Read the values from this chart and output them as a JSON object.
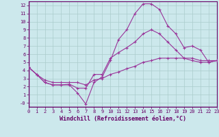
{
  "xlabel": "Windchill (Refroidissement éolien,°C)",
  "background_color": "#cce8ec",
  "grid_color": "#aacccc",
  "line_color": "#993399",
  "xlim": [
    0,
    23
  ],
  "ylim": [
    -0.5,
    12.5
  ],
  "xticks": [
    0,
    1,
    2,
    3,
    4,
    5,
    6,
    7,
    8,
    9,
    10,
    11,
    12,
    13,
    14,
    15,
    16,
    17,
    18,
    19,
    20,
    21,
    22,
    23
  ],
  "yticks": [
    0,
    1,
    2,
    3,
    4,
    5,
    6,
    7,
    8,
    9,
    10,
    11,
    12
  ],
  "ytick_labels": [
    "-0",
    "1",
    "2",
    "3",
    "4",
    "5",
    "6",
    "7",
    "8",
    "9",
    "10",
    "11",
    "12"
  ],
  "curve1_x": [
    0,
    1,
    2,
    3,
    4,
    5,
    6,
    7,
    8,
    9,
    10,
    11,
    12,
    13,
    14,
    15,
    16,
    17,
    18,
    19,
    20,
    21,
    22,
    23
  ],
  "curve1_y": [
    4.4,
    3.5,
    2.5,
    2.2,
    2.2,
    2.2,
    1.2,
    -0.15,
    2.5,
    3.2,
    5.2,
    7.8,
    9.0,
    11.0,
    12.2,
    12.2,
    11.5,
    9.5,
    8.5,
    6.8,
    7.0,
    6.5,
    5.0,
    5.2
  ],
  "curve2_x": [
    0,
    1,
    2,
    3,
    4,
    5,
    6,
    7,
    8,
    9,
    10,
    11,
    12,
    13,
    14,
    15,
    16,
    17,
    18,
    19,
    20,
    21,
    22,
    23
  ],
  "curve2_y": [
    4.4,
    3.5,
    2.5,
    2.2,
    2.2,
    2.3,
    1.8,
    1.8,
    3.5,
    3.5,
    5.5,
    6.2,
    6.8,
    7.5,
    8.5,
    9.0,
    8.5,
    7.5,
    6.5,
    5.5,
    5.2,
    5.0,
    5.0,
    5.2
  ],
  "curve3_x": [
    0,
    1,
    2,
    3,
    4,
    5,
    6,
    7,
    8,
    9,
    10,
    11,
    12,
    13,
    14,
    15,
    16,
    17,
    18,
    19,
    20,
    21,
    22,
    23
  ],
  "curve3_y": [
    4.4,
    3.5,
    2.8,
    2.5,
    2.5,
    2.5,
    2.5,
    2.2,
    2.8,
    3.0,
    3.5,
    3.8,
    4.2,
    4.5,
    5.0,
    5.2,
    5.5,
    5.5,
    5.5,
    5.5,
    5.5,
    5.2,
    5.2,
    5.2
  ]
}
